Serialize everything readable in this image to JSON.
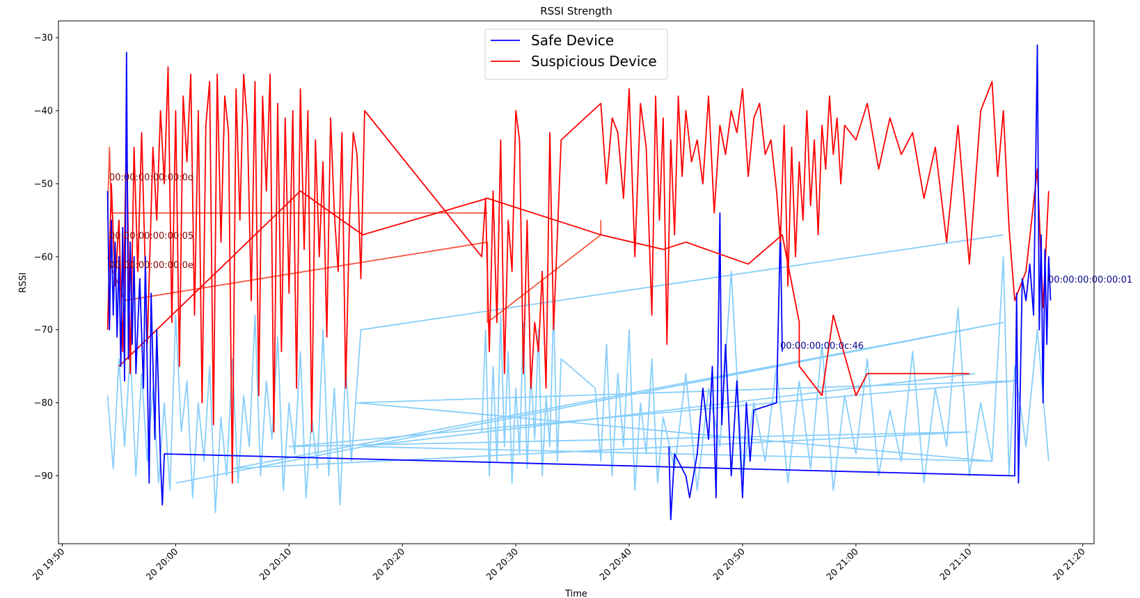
{
  "chart_data": {
    "type": "line",
    "title": "RSSI Strength",
    "xlabel": "Time",
    "ylabel": "RSSI",
    "xlim": [
      "20 19:49:40",
      "20 21:21:00"
    ],
    "xticks": [
      "20 19:50",
      "20 20:00",
      "20 20:10",
      "20 20:20",
      "20 20:30",
      "20 20:40",
      "20 20:50",
      "20 21:00",
      "20 21:10",
      "20 21:20"
    ],
    "ylim": [
      -99.3,
      -27.7
    ],
    "yticks": [
      {
        "value": -30,
        "label": "−30"
      },
      {
        "value": -40,
        "label": "−40"
      },
      {
        "value": -50,
        "label": "−50"
      },
      {
        "value": -60,
        "label": "−60"
      },
      {
        "value": -70,
        "label": "−70"
      },
      {
        "value": -80,
        "label": "−80"
      },
      {
        "value": -90,
        "label": "−90"
      }
    ],
    "legend": "upper center",
    "series": [
      {
        "name": "Safe Device",
        "color": "#0000ff",
        "x": [
          "20 19:54:00",
          "20 19:54:10",
          "20 19:54:20",
          "20 19:54:30",
          "20 19:54:40",
          "20 19:54:50",
          "20 19:55:00",
          "20 19:55:10",
          "20 19:55:20",
          "20 19:55:30",
          "20 19:55:40",
          "20 19:55:50",
          "20 19:56:00",
          "20 19:56:10",
          "20 19:56:20",
          "20 19:56:30",
          "20 19:56:50",
          "20 19:57:10",
          "20 19:57:20",
          "20 19:57:40",
          "20 19:57:50",
          "20 19:58:10",
          "20 19:58:20",
          "20 19:58:40",
          "20 19:58:50",
          "20 19:59:00",
          "20 21:14:00",
          "20 21:14:10",
          "20 21:14:20",
          "20 21:14:40",
          "20 21:15:00",
          "20 21:15:20",
          "20 21:15:40",
          "20 21:16:00",
          "20 21:16:10",
          "20 21:16:20",
          "20 21:16:30",
          "20 21:16:40",
          "20 21:16:50",
          "20 21:17:00",
          "20 21:17:10"
        ],
        "values": [
          -51,
          -70,
          -55,
          -68,
          -58,
          -71,
          -60,
          -75,
          -56,
          -77,
          -32,
          -74,
          -58,
          -72,
          -60,
          -76,
          -63,
          -78,
          -60,
          -91,
          -65,
          -85,
          -70,
          -88,
          -94,
          -87,
          -90,
          -65,
          -91,
          -63,
          -66,
          -61,
          -68,
          -31,
          -70,
          -57,
          -80,
          -59,
          -72,
          -60,
          -66
        ]
      },
      {
        "name": "Suspicious Device",
        "color": "#ff0000",
        "x": [
          "20 19:54:00",
          "20 19:54:20",
          "20 19:54:40",
          "20 19:55:00",
          "20 19:55:20",
          "20 19:55:40",
          "20 19:56:00",
          "20 19:56:20",
          "20 19:56:40",
          "20 19:57:00",
          "20 19:57:30",
          "20 19:58:00",
          "20 19:58:20",
          "20 19:58:40",
          "20 19:59:00",
          "20 19:59:20",
          "20 19:59:40",
          "20 20:00:00",
          "20 20:00:20",
          "20 20:00:40",
          "20 20:01:00",
          "20 20:01:20",
          "20 20:01:40",
          "20 20:02:00",
          "20 20:02:20",
          "20 20:02:40",
          "20 20:03:00",
          "20 20:03:20",
          "20 20:03:40",
          "20 20:04:00",
          "20 20:04:20",
          "20 20:04:40",
          "20 20:05:00",
          "20 20:05:20",
          "20 20:05:40",
          "20 20:06:00",
          "20 20:06:20",
          "20 20:06:40",
          "20 20:07:00",
          "20 20:07:20",
          "20 20:07:40",
          "20 20:08:00",
          "20 20:08:20",
          "20 20:08:40",
          "20 20:09:00",
          "20 20:09:20",
          "20 20:09:40",
          "20 20:10:00",
          "20 20:10:20",
          "20 20:10:40",
          "20 20:11:00",
          "20 20:11:20",
          "20 20:11:40",
          "20 20:12:00",
          "20 20:12:20",
          "20 20:12:40",
          "20 20:13:00",
          "20 20:13:20",
          "20 20:13:40",
          "20 20:14:00",
          "20 20:14:20",
          "20 20:14:40",
          "20 20:15:00",
          "20 20:15:20",
          "20 20:15:40",
          "20 20:16:00",
          "20 20:16:20",
          "20 20:16:40",
          "20 20:27:00",
          "20 20:27:20",
          "20 20:27:40",
          "20 20:28:00",
          "20 20:28:20",
          "20 20:28:40",
          "20 20:29:00",
          "20 20:29:20",
          "20 20:29:40",
          "20 20:30:00",
          "20 20:30:20",
          "20 20:30:40",
          "20 20:31:00",
          "20 20:31:20",
          "20 20:31:40",
          "20 20:32:00",
          "20 20:32:20",
          "20 20:32:40",
          "20 20:33:00",
          "20 20:33:20",
          "20 20:34:00",
          "20 20:37:30",
          "20 20:38:00",
          "20 20:38:30",
          "20 20:39:00",
          "20 20:39:30",
          "20 20:40:00",
          "20 20:40:30",
          "20 20:41:00",
          "20 20:41:30",
          "20 20:42:00",
          "20 20:42:20",
          "20 20:42:40",
          "20 20:43:00",
          "20 20:43:20",
          "20 20:43:40",
          "20 20:44:00",
          "20 20:44:20",
          "20 20:44:40",
          "20 20:45:00",
          "20 20:45:30",
          "20 20:46:00",
          "20 20:46:30",
          "20 20:47:00",
          "20 20:47:30",
          "20 20:48:00",
          "20 20:48:30",
          "20 20:49:00",
          "20 20:49:30",
          "20 20:50:00",
          "20 20:50:30",
          "20 20:51:00",
          "20 20:51:30",
          "20 20:52:00",
          "20 20:52:30",
          "20 20:53:00",
          "20 20:53:20",
          "20 20:53:40",
          "20 20:54:00",
          "20 20:54:20",
          "20 20:54:40",
          "20 20:55:00",
          "20 20:55:20",
          "20 20:55:40",
          "20 20:56:00",
          "20 20:56:20",
          "20 20:56:40",
          "20 20:57:00",
          "20 20:57:20",
          "20 20:57:40",
          "20 20:58:00",
          "20 20:58:20",
          "20 20:58:40",
          "20 20:59:00",
          "20 21:00:00",
          "20 21:01:00",
          "20 21:02:00",
          "20 21:03:00",
          "20 21:04:00",
          "20 21:05:00",
          "20 21:06:00",
          "20 21:07:00",
          "20 21:08:00",
          "20 21:09:00",
          "20 21:10:00",
          "20 21:11:00",
          "20 21:12:00",
          "20 21:12:30",
          "20 21:13:00",
          "20 21:13:30",
          "20 21:14:00",
          "20 21:15:00",
          "20 21:16:00",
          "20 21:16:30",
          "20 21:17:00"
        ],
        "values": [
          -70,
          -50,
          -64,
          -55,
          -73,
          -42,
          -76,
          -45,
          -62,
          -43,
          -72,
          -45,
          -55,
          -40,
          -50,
          -34,
          -69,
          -40,
          -75,
          -38,
          -47,
          -35,
          -68,
          -40,
          -80,
          -42,
          -36,
          -83,
          -35,
          -58,
          -38,
          -43,
          -91,
          -37,
          -55,
          -35,
          -42,
          -66,
          -36,
          -79,
          -38,
          -51,
          -35,
          -84,
          -39,
          -73,
          -41,
          -65,
          -40,
          -78,
          -37,
          -59,
          -40,
          -84,
          -44,
          -60,
          -47,
          -71,
          -41,
          -54,
          -62,
          -43,
          -78,
          -55,
          -43,
          -46,
          -63,
          -40,
          -60,
          -52,
          -73,
          -51,
          -69,
          -44,
          -76,
          -55,
          -62,
          -40,
          -44,
          -76,
          -55,
          -78,
          -69,
          -73,
          -62,
          -78,
          -43,
          -70,
          -44,
          -39,
          -50,
          -41,
          -43,
          -52,
          -37,
          -60,
          -39,
          -45,
          -68,
          -38,
          -55,
          -41,
          -72,
          -44,
          -57,
          -38,
          -49,
          -40,
          -47,
          -44,
          -50,
          -38,
          -54,
          -42,
          -46,
          -40,
          -43,
          -37,
          -49,
          -41,
          -39,
          -46,
          -44,
          -51,
          -58,
          -42,
          -64,
          -45,
          -60,
          -47,
          -55,
          -40,
          -53,
          -44,
          -57,
          -42,
          -48,
          -38,
          -46,
          -41,
          -50,
          -42,
          -44,
          -39,
          -48,
          -41,
          -46,
          -43,
          -52,
          -45,
          -58,
          -42,
          -61,
          -40,
          -36,
          -49,
          -40,
          -56,
          -66,
          -62,
          -48,
          -67,
          -51
        ]
      },
      {
        "color": "#ff0000",
        "x": [
          "20 19:55:00",
          "20 20:11:00",
          "20 20:16:30",
          "20 20:27:30",
          "20 20:37:30",
          "20 20:43:00",
          "20 20:45:00",
          "20 20:50:30",
          "20 20:53:30",
          "20 20:55:00",
          "20 20:55:00",
          "20 20:57:00",
          "20 20:58:00",
          "20 21:00:00",
          "20 21:01:00",
          "20 21:10:00"
        ],
        "values": [
          -75,
          -51,
          -57,
          -52,
          -57,
          -59,
          -58,
          -61,
          -57,
          -69,
          -75,
          -79,
          -68,
          -79,
          -76,
          -76
        ]
      },
      {
        "color": "#0000ff",
        "x": [
          "20 20:43:30",
          "20 20:43:40",
          "20 20:44:00",
          "20 20:45:00",
          "20 20:45:20",
          "20 20:46:00",
          "20 20:46:30",
          "20 20:47:00",
          "20 20:47:20",
          "20 20:47:40",
          "20 20:48:00",
          "20 20:48:10",
          "20 20:48:30",
          "20 20:49:00",
          "20 20:49:30",
          "20 20:50:00",
          "20 20:50:20",
          "20 20:50:40",
          "20 20:51:00",
          "20 20:53:00",
          "20 20:53:20",
          "20 20:53:30"
        ],
        "values": [
          -86,
          -96,
          -87,
          -90,
          -93,
          -87,
          -78,
          -85,
          -75,
          -93,
          -54,
          -83,
          -72,
          -90,
          -77,
          -93,
          -80,
          -88,
          -81,
          -80,
          -56,
          -73
        ]
      },
      {
        "color": "#f4553f",
        "x": [
          "20 19:54:00",
          "20 19:54:10",
          "20 19:54:20",
          "20 20:27:30"
        ],
        "values": [
          -54,
          -45,
          -54,
          -54
        ]
      },
      {
        "color": "#f4553f",
        "x": [
          "20 19:54:00",
          "20 19:55:30",
          "20 20:27:30",
          "20 20:27:30",
          "20 20:37:30",
          "20 20:37:30"
        ],
        "values": [
          -60,
          -66,
          -58,
          -69,
          -57,
          -55
        ]
      },
      {
        "color": "#87cefa",
        "x": [
          "20 19:54:00",
          "20 19:54:30",
          "20 19:55:00",
          "20 19:55:30",
          "20 19:56:00",
          "20 19:56:30",
          "20 19:57:00",
          "20 19:57:30",
          "20 19:58:00",
          "20 19:58:30",
          "20 19:59:00",
          "20 19:59:30",
          "20 20:00:00",
          "20 20:00:30",
          "20 20:01:00",
          "20 20:01:30",
          "20 20:02:00",
          "20 20:02:30",
          "20 20:03:00",
          "20 20:03:30",
          "20 20:04:00",
          "20 20:04:30",
          "20 20:05:00",
          "20 20:05:30",
          "20 20:06:00",
          "20 20:06:30",
          "20 20:07:00",
          "20 20:07:30",
          "20 20:08:00",
          "20 20:08:30",
          "20 20:09:00",
          "20 20:09:30",
          "20 20:10:00",
          "20 20:10:30",
          "20 20:11:00",
          "20 20:11:30",
          "20 20:12:00",
          "20 20:12:30",
          "20 20:13:00",
          "20 20:13:30",
          "20 20:14:00",
          "20 20:14:30",
          "20 20:15:00",
          "20 20:15:30",
          "20 20:16:20",
          "20 21:13:00"
        ],
        "values": [
          -79,
          -89,
          -74,
          -86,
          -73,
          -90,
          -76,
          -88,
          -78,
          -91,
          -80,
          -92,
          -68,
          -84,
          -77,
          -93,
          -80,
          -88,
          -75,
          -95,
          -82,
          -90,
          -74,
          -91,
          -79,
          -86,
          -68,
          -90,
          -77,
          -85,
          -71,
          -92,
          -80,
          -87,
          -73,
          -93,
          -82,
          -89,
          -70,
          -90,
          -78,
          -94,
          -75,
          -88,
          -70,
          -57
        ]
      },
      {
        "color": "#87cefa",
        "x": [
          "20 20:27:00",
          "20 20:27:20",
          "20 20:27:40",
          "20 20:28:00",
          "20 20:28:20",
          "20 20:28:40",
          "20 20:29:00",
          "20 20:29:20",
          "20 20:29:40",
          "20 20:30:00",
          "20 20:30:20",
          "20 20:30:40",
          "20 20:31:00",
          "20 20:31:20",
          "20 20:31:40",
          "20 20:32:00",
          "20 20:32:20",
          "20 20:32:40",
          "20 20:33:00",
          "20 20:33:20",
          "20 20:33:40",
          "20 20:34:00",
          "20 20:37:00",
          "20 20:37:30",
          "20 20:38:00",
          "20 20:38:30",
          "20 20:39:00",
          "20 20:39:30",
          "20 20:40:00",
          "20 20:40:30",
          "20 20:41:00",
          "20 20:41:30",
          "20 20:42:00",
          "20 20:42:30",
          "20 20:43:00",
          "20 20:44:00",
          "20 20:45:00",
          "20 20:46:00",
          "20 20:47:00",
          "20 20:48:00",
          "20 20:49:00",
          "20 20:50:00",
          "20 20:51:00",
          "20 20:52:00",
          "20 20:53:00",
          "20 20:54:00",
          "20 20:55:00",
          "20 20:56:00",
          "20 20:57:00",
          "20 20:58:00",
          "20 20:59:00",
          "20 21:00:00",
          "20 21:01:00",
          "20 21:02:00",
          "20 21:03:00",
          "20 21:04:00",
          "20 21:05:00",
          "20 21:06:00",
          "20 21:07:00",
          "20 21:08:00",
          "20 21:09:00",
          "20 21:10:00",
          "20 21:11:00",
          "20 21:12:00",
          "20 21:13:00",
          "20 21:13:30",
          "20 21:14:00",
          "20 21:15:00",
          "20 21:16:00",
          "20 21:17:00"
        ],
        "values": [
          -84,
          -70,
          -90,
          -75,
          -88,
          -68,
          -86,
          -73,
          -91,
          -78,
          -87,
          -69,
          -89,
          -76,
          -85,
          -70,
          -90,
          -79,
          -86,
          -67,
          -88,
          -74,
          -78,
          -88,
          -72,
          -90,
          -76,
          -86,
          -70,
          -92,
          -80,
          -87,
          -74,
          -91,
          -82,
          -89,
          -76,
          -92,
          -78,
          -86,
          -62,
          -90,
          -80,
          -88,
          -75,
          -91,
          -77,
          -89,
          -72,
          -92,
          -79,
          -87,
          -74,
          -90,
          -81,
          -88,
          -73,
          -91,
          -78,
          -86,
          -67,
          -90,
          -80,
          -88,
          -60,
          -90,
          -75,
          -86,
          -70,
          -88
        ]
      },
      {
        "color": "#87cefa",
        "x": [
          "20 20:00:00",
          "20 21:13:00",
          "20 20:05:00",
          "20 21:10:00",
          "20 20:10:00",
          "20 21:14:00",
          "20 20:16:00",
          "20 21:12:00",
          "20 20:16:30",
          "20 21:10:30"
        ],
        "values": [
          -91,
          -69,
          -89,
          -84,
          -86,
          -77,
          -80,
          -88,
          -86,
          -76
        ]
      }
    ],
    "annotations": [
      {
        "text": "00:00:00:00:00:0d",
        "color": "#8b0000"
      },
      {
        "text": "00:00:00:00:00:05",
        "color": "#8b0000"
      },
      {
        "text": "00:00:00:00:00:0e",
        "color": "#8b0000"
      },
      {
        "text": "00:00:00:00:00:01",
        "color": "#00008b"
      },
      {
        "text": "00:00:00:00:0c:46",
        "color": "#00008b"
      }
    ]
  }
}
